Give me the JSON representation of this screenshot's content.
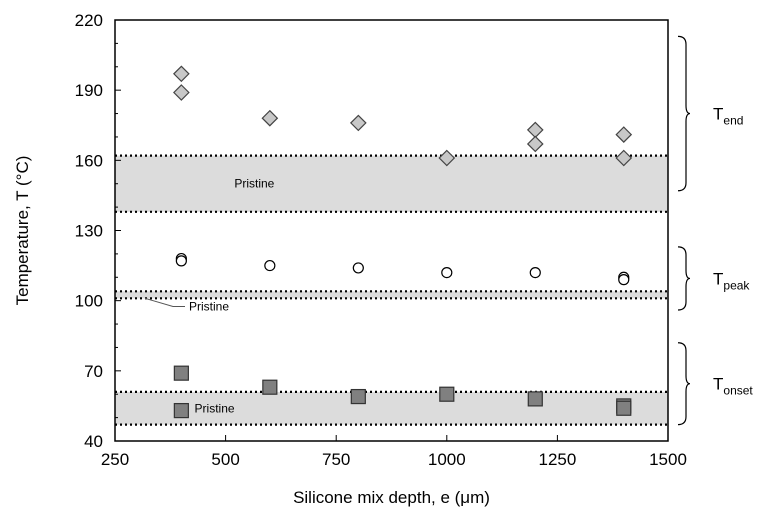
{
  "chart_data": {
    "type": "scatter",
    "xlabel": "Silicone mix depth, e (μm)",
    "ylabel": "Temperature, T (°C)",
    "xlim": [
      250,
      1500
    ],
    "ylim": [
      40,
      220
    ],
    "xticks": [
      250,
      500,
      750,
      1000,
      1250,
      1500
    ],
    "yticks": [
      40,
      70,
      100,
      130,
      160,
      190,
      220
    ],
    "grid": false,
    "series": [
      {
        "marker": "diamond",
        "color": "#c8c8c8",
        "x": [
          400,
          400,
          600,
          800,
          1000,
          1200,
          1200,
          1400,
          1400
        ],
        "y": [
          197,
          189,
          178,
          176,
          161,
          173,
          167,
          171,
          161
        ]
      },
      {
        "marker": "circle",
        "color": "#ffffff",
        "x": [
          400,
          400,
          600,
          800,
          1000,
          1200,
          1400,
          1400
        ],
        "y": [
          118,
          117,
          115,
          114,
          112,
          112,
          110,
          109
        ]
      },
      {
        "marker": "square",
        "color": "#808080",
        "x": [
          400,
          400,
          600,
          800,
          1000,
          1200,
          1400,
          1400
        ],
        "y": [
          69,
          53,
          63,
          59,
          60,
          58,
          55,
          54
        ]
      }
    ],
    "bands": [
      {
        "label": "Pristine",
        "ymin": 138,
        "ymax": 162
      },
      {
        "label": "Pristine",
        "ymin": 101,
        "ymax": 104
      },
      {
        "label": "Pristine",
        "ymin": 47,
        "ymax": 61
      }
    ],
    "groups": [
      {
        "label": "T",
        "sub": "end"
      },
      {
        "label": "T",
        "sub": "peak"
      },
      {
        "label": "T",
        "sub": "onset"
      }
    ]
  }
}
